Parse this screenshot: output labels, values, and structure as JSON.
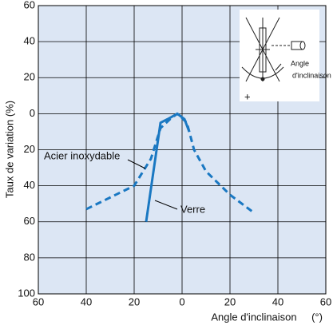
{
  "chart_data": {
    "type": "line",
    "xlabel": "Angle d'inclinaison",
    "xunit": "(°)",
    "ylabel": "Taux de variation (%)",
    "xlim": [
      -60,
      60
    ],
    "ylim": [
      -100,
      60
    ],
    "xticks": [
      {
        "value": -60,
        "label": "60"
      },
      {
        "value": -40,
        "label": "40"
      },
      {
        "value": -20,
        "label": "20"
      },
      0,
      20,
      40,
      60
    ],
    "yticks": [
      60,
      40,
      20,
      0,
      {
        "value": -20,
        "label": "20"
      },
      {
        "value": -40,
        "label": "40"
      },
      {
        "value": -60,
        "label": "60"
      },
      {
        "value": -80,
        "label": "80"
      },
      {
        "value": -100,
        "label": "100"
      }
    ],
    "grid": true,
    "series": [
      {
        "name": "Acier inoxydable",
        "color": "#1a78c2",
        "dashed": true,
        "x": [
          -40,
          -20,
          -13,
          -9,
          -5,
          -2,
          2,
          5,
          10,
          20,
          30
        ],
        "values": [
          -53,
          -40,
          -25,
          -8,
          -3,
          0,
          -5,
          -20,
          -32,
          -45,
          -55
        ]
      },
      {
        "name": "Verre",
        "color": "#1a78c2",
        "dashed": false,
        "x": [
          -15,
          -9,
          -6,
          -2,
          1,
          3
        ],
        "values": [
          -60,
          -5,
          -3,
          0,
          -3,
          -10
        ]
      }
    ],
    "inset_labels": [
      "Angle",
      "d'inclinaison",
      "+"
    ]
  }
}
